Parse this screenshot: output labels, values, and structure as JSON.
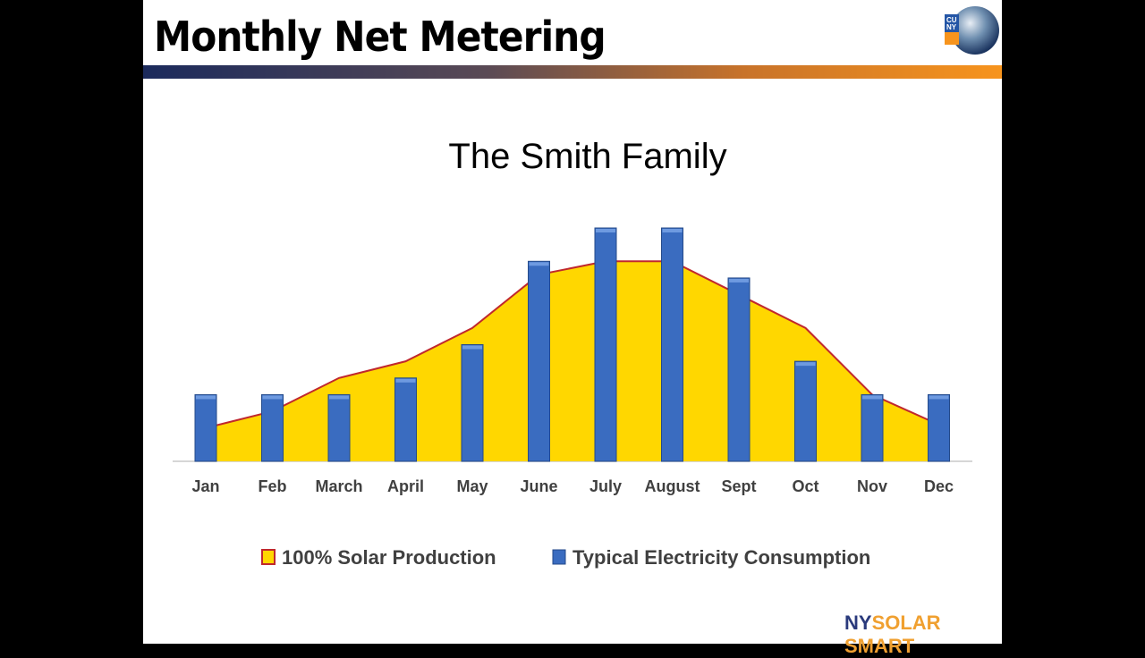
{
  "slide_title": "Monthly Net Metering",
  "logos": {
    "top_right": "CUNY",
    "bottom_right_a": "NY",
    "bottom_right_b": "SOLAR SMART"
  },
  "colors": {
    "area_fill": "#ffd700",
    "area_line": "#c0282d",
    "bar_fill": "#3a6cc0",
    "title_bar_start": "#1b2a5c",
    "title_bar_end": "#f7941d"
  },
  "chart_data": {
    "type": "bar",
    "title": "The Smith Family",
    "xlabel": "",
    "ylabel": "",
    "grid": false,
    "legend_position": "bottom",
    "categories": [
      "Jan",
      "Feb",
      "March",
      "April",
      "May",
      "June",
      "July",
      "August",
      "Sept",
      "Oct",
      "Nov",
      "Dec"
    ],
    "ylim": [
      0,
      15
    ],
    "series": [
      {
        "name": "100% Solar Production",
        "type": "area",
        "values": [
          2,
          3,
          5,
          6,
          8,
          11.2,
          12,
          12,
          10,
          8,
          4,
          2.2
        ]
      },
      {
        "name": "Typical Electricity Consumption",
        "type": "bar",
        "values": [
          4,
          4,
          4,
          5,
          7,
          12,
          14,
          14,
          11,
          6,
          4,
          4
        ]
      }
    ]
  }
}
